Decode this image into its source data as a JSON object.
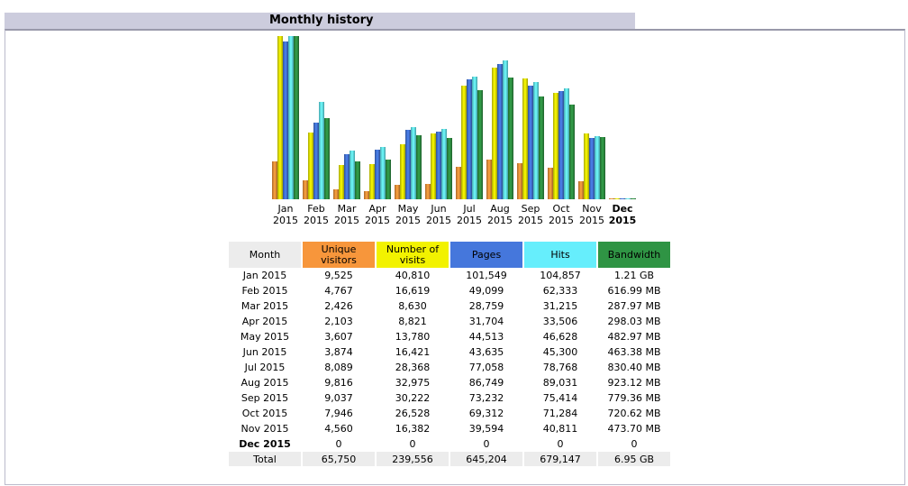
{
  "title": "Monthly history",
  "colors": {
    "visitors": "#f7963b",
    "visits": "#f2f200",
    "pages": "#4577dc",
    "hits": "#66eefc",
    "bandwidth": "#2f9444"
  },
  "columns": [
    "Month",
    "Unique visitors",
    "Number of visits",
    "Pages",
    "Hits",
    "Bandwidth"
  ],
  "rows": [
    [
      "Jan 2015",
      "9,525",
      "40,810",
      "101,549",
      "104,857",
      "1.21 GB"
    ],
    [
      "Feb 2015",
      "4,767",
      "16,619",
      "49,099",
      "62,333",
      "616.99 MB"
    ],
    [
      "Mar 2015",
      "2,426",
      "8,630",
      "28,759",
      "31,215",
      "287.97 MB"
    ],
    [
      "Apr 2015",
      "2,103",
      "8,821",
      "31,704",
      "33,506",
      "298.03 MB"
    ],
    [
      "May 2015",
      "3,607",
      "13,780",
      "44,513",
      "46,628",
      "482.97 MB"
    ],
    [
      "Jun 2015",
      "3,874",
      "16,421",
      "43,635",
      "45,300",
      "463.38 MB"
    ],
    [
      "Jul 2015",
      "8,089",
      "28,368",
      "77,058",
      "78,768",
      "830.40 MB"
    ],
    [
      "Aug 2015",
      "9,816",
      "32,975",
      "86,749",
      "89,031",
      "923.12 MB"
    ],
    [
      "Sep 2015",
      "9,037",
      "30,222",
      "73,232",
      "75,414",
      "779.36 MB"
    ],
    [
      "Oct 2015",
      "7,946",
      "26,528",
      "69,312",
      "71,284",
      "720.62 MB"
    ],
    [
      "Nov 2015",
      "4,560",
      "16,382",
      "39,594",
      "40,811",
      "473.70 MB"
    ],
    [
      "Dec 2015",
      "0",
      "0",
      "0",
      "0",
      "0"
    ]
  ],
  "total": [
    "Total",
    "65,750",
    "239,556",
    "645,204",
    "679,147",
    "6.95 GB"
  ],
  "chart_data": {
    "type": "bar",
    "categories": [
      [
        "Jan",
        "2015"
      ],
      [
        "Feb",
        "2015"
      ],
      [
        "Mar",
        "2015"
      ],
      [
        "Apr",
        "2015"
      ],
      [
        "May",
        "2015"
      ],
      [
        "Jun",
        "2015"
      ],
      [
        "Jul",
        "2015"
      ],
      [
        "Aug",
        "2015"
      ],
      [
        "Sep",
        "2015"
      ],
      [
        "Oct",
        "2015"
      ],
      [
        "Nov",
        "2015"
      ],
      [
        "Dec",
        "2015"
      ]
    ],
    "current_index": 11,
    "series": [
      {
        "name": "Unique visitors",
        "key": "visitors",
        "scale": "visits",
        "values": [
          9525,
          4767,
          2426,
          2103,
          3607,
          3874,
          8089,
          9816,
          9037,
          7946,
          4560,
          0
        ]
      },
      {
        "name": "Number of visits",
        "key": "visits",
        "scale": "visits",
        "values": [
          40810,
          16619,
          8630,
          8821,
          13780,
          16421,
          28368,
          32975,
          30222,
          26528,
          16382,
          0
        ]
      },
      {
        "name": "Pages",
        "key": "pages",
        "scale": "hits",
        "values": [
          101549,
          49099,
          28759,
          31704,
          44513,
          43635,
          77058,
          86749,
          73232,
          69312,
          39594,
          0
        ]
      },
      {
        "name": "Hits",
        "key": "hits",
        "scale": "hits",
        "values": [
          104857,
          62333,
          31215,
          33506,
          46628,
          45300,
          78768,
          89031,
          75414,
          71284,
          40811,
          0
        ]
      },
      {
        "name": "Bandwidth (MB)",
        "key": "bandwidth",
        "scale": "bandwidth",
        "values": [
          1239,
          616.99,
          287.97,
          298.03,
          482.97,
          463.38,
          830.4,
          923.12,
          779.36,
          720.62,
          473.7,
          0
        ]
      }
    ]
  }
}
